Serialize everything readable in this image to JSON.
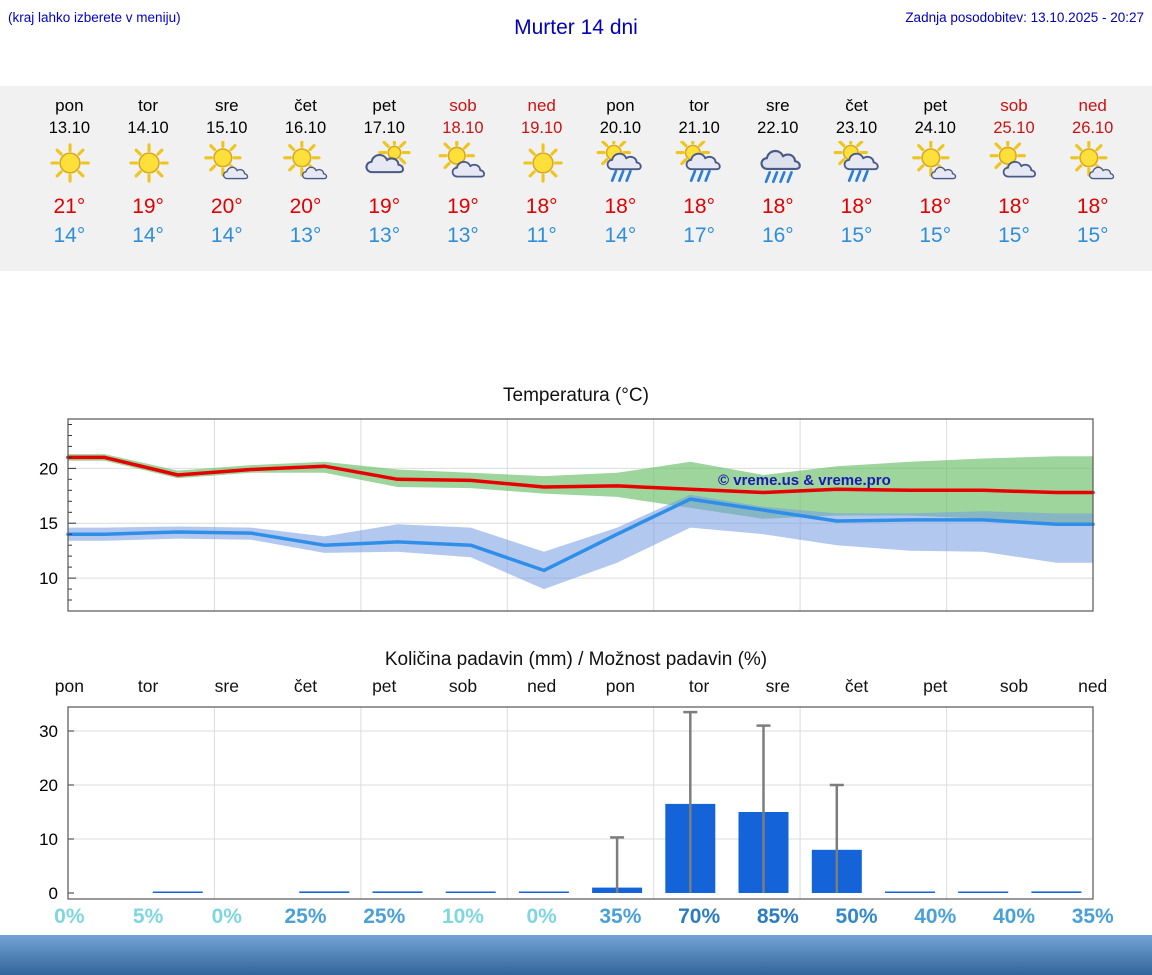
{
  "header": {
    "note": "(kraj lahko izberete v meniju)",
    "title": "Murter 14 dni",
    "updated": "Zadnja posodobitev: 13.10.2025 - 20:27"
  },
  "forecast": {
    "days": [
      {
        "name": "pon",
        "date": "13.10",
        "weekend": false,
        "icon": "sunny",
        "high": "21°",
        "low": "14°"
      },
      {
        "name": "tor",
        "date": "14.10",
        "weekend": false,
        "icon": "sunny",
        "high": "19°",
        "low": "14°"
      },
      {
        "name": "sre",
        "date": "15.10",
        "weekend": false,
        "icon": "mostly-sunny",
        "high": "20°",
        "low": "14°"
      },
      {
        "name": "čet",
        "date": "16.10",
        "weekend": false,
        "icon": "mostly-sunny",
        "high": "20°",
        "low": "13°"
      },
      {
        "name": "pet",
        "date": "17.10",
        "weekend": false,
        "icon": "cloudy",
        "high": "19°",
        "low": "13°"
      },
      {
        "name": "sob",
        "date": "18.10",
        "weekend": true,
        "icon": "partly-cloudy",
        "high": "19°",
        "low": "13°"
      },
      {
        "name": "ned",
        "date": "19.10",
        "weekend": true,
        "icon": "sunny",
        "high": "18°",
        "low": "11°"
      },
      {
        "name": "pon",
        "date": "20.10",
        "weekend": false,
        "icon": "rain-sun",
        "high": "18°",
        "low": "14°"
      },
      {
        "name": "tor",
        "date": "21.10",
        "weekend": false,
        "icon": "rain-sun",
        "high": "18°",
        "low": "17°"
      },
      {
        "name": "sre",
        "date": "22.10",
        "weekend": false,
        "icon": "rain",
        "high": "18°",
        "low": "16°"
      },
      {
        "name": "čet",
        "date": "23.10",
        "weekend": false,
        "icon": "rain-sun",
        "high": "18°",
        "low": "15°"
      },
      {
        "name": "pet",
        "date": "24.10",
        "weekend": false,
        "icon": "mostly-sunny",
        "high": "18°",
        "low": "15°"
      },
      {
        "name": "sob",
        "date": "25.10",
        "weekend": true,
        "icon": "partly-cloudy",
        "high": "18°",
        "low": "15°"
      },
      {
        "name": "ned",
        "date": "26.10",
        "weekend": true,
        "icon": "mostly-sunny",
        "high": "18°",
        "low": "15°"
      }
    ]
  },
  "chart_data": [
    {
      "type": "line",
      "title": "Temperatura (°C)",
      "categories": [
        "pon 13.10",
        "tor 14.10",
        "sre 15.10",
        "čet 16.10",
        "pet 17.10",
        "sob 18.10",
        "ned 19.10",
        "pon 20.10",
        "tor 21.10",
        "sre 22.10",
        "čet 23.10",
        "pet 24.10",
        "sob 25.10",
        "ned 26.10"
      ],
      "ylim": [
        7,
        24.5
      ],
      "yticks": [
        10,
        15,
        20
      ],
      "grid": true,
      "watermark": "© vreme.us & vreme.pro",
      "watermark_color": "#1a1aae",
      "series": [
        {
          "name": "max temperature",
          "color": "#e60000",
          "values": [
            21,
            19.4,
            19.9,
            20.2,
            19,
            18.9,
            18.3,
            18.4,
            18.1,
            17.8,
            18.1,
            18,
            18,
            17.8
          ]
        },
        {
          "name": "min temperature",
          "color": "#2f8fe8",
          "values": [
            14,
            14.2,
            14.1,
            13,
            13.3,
            13,
            10.7,
            14,
            17.2,
            16.2,
            15.2,
            15.3,
            15.3,
            14.9
          ]
        }
      ],
      "bands": [
        {
          "name": "max-range",
          "color": "rgba(105,190,105,0.65)",
          "upper": [
            21.3,
            19.8,
            20.3,
            20.6,
            19.9,
            19.6,
            19.3,
            19.6,
            20.6,
            19.4,
            20.2,
            20.6,
            20.9,
            21.1
          ],
          "lower": [
            20.7,
            19.1,
            19.6,
            19.6,
            18.3,
            18.2,
            17.7,
            17.4,
            16.4,
            15.4,
            15.7,
            15.7,
            15.4,
            15
          ]
        },
        {
          "name": "min-range",
          "color": "rgba(115,155,225,0.55)",
          "upper": [
            14.6,
            14.7,
            14.6,
            13.8,
            14.9,
            14.6,
            12.4,
            14.6,
            17.6,
            16.5,
            15.9,
            15.9,
            16.1,
            15.9
          ],
          "lower": [
            13.4,
            13.6,
            13.5,
            12.3,
            12.4,
            11.9,
            9,
            11.4,
            14.6,
            14,
            13,
            12.5,
            12.4,
            11.4
          ]
        }
      ]
    },
    {
      "type": "bar",
      "title": "Količina padavin (mm) / Možnost padavin (%)",
      "categories": [
        "pon",
        "tor",
        "sre",
        "čet",
        "pet",
        "sob",
        "ned",
        "pon",
        "tor",
        "sre",
        "čet",
        "pet",
        "sob",
        "ned"
      ],
      "ylim": [
        0,
        34
      ],
      "yticks": [
        0,
        10,
        20,
        30
      ],
      "grid": true,
      "values": [
        0,
        0.2,
        0,
        0.3,
        0.3,
        0.2,
        0.2,
        1,
        16.5,
        15,
        8,
        0.2,
        0.2,
        0.3
      ],
      "whisker_max": [
        0,
        0,
        0,
        0,
        0,
        0,
        0,
        10.3,
        33.5,
        31,
        20,
        0,
        0,
        0
      ],
      "bar_color": "#1463d8",
      "whisker_color": "#7d7d7d",
      "probabilities": [
        "0%",
        "5%",
        "0%",
        "25%",
        "25%",
        "10%",
        "0%",
        "35%",
        "70%",
        "85%",
        "50%",
        "40%",
        "40%",
        "35%"
      ],
      "prob_colors": [
        "#7ed7e0",
        "#7ed7e0",
        "#7ed7e0",
        "#4aa0d8",
        "#4aa0d8",
        "#7ed7e0",
        "#7ed7e0",
        "#4aa0d8",
        "#2b7cc2",
        "#2b7cc2",
        "#3388cc",
        "#4aa0d8",
        "#4aa0d8",
        "#4aa0d8"
      ]
    }
  ],
  "footer_bar": {
    "top": "#74a3d6",
    "bottom": "#32659b"
  }
}
